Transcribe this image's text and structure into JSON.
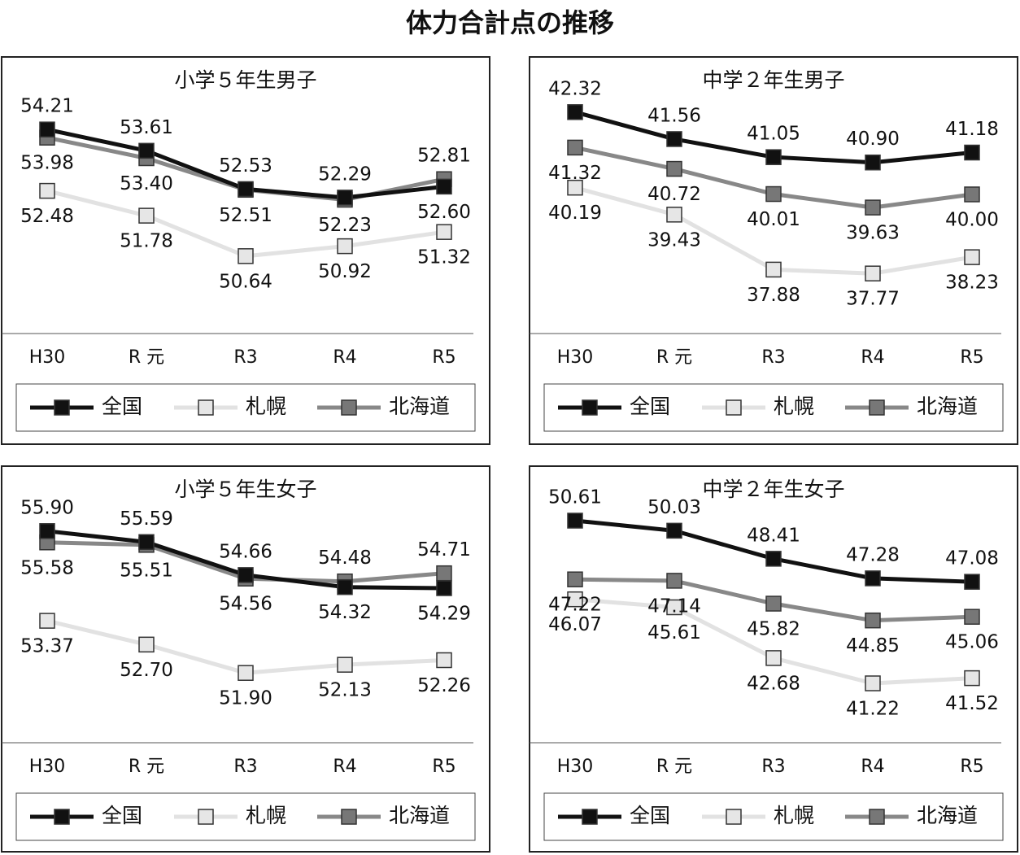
{
  "title": "体力合計点の推移",
  "chart_data": [
    {
      "type": "line",
      "title": "小学５年生男子",
      "categories": [
        "H30",
        "R 元",
        "R3",
        "R4",
        "R5"
      ],
      "series": [
        {
          "name": "全国",
          "color": "#111111",
          "marker_color": "#111111",
          "values": [
            54.21,
            53.61,
            52.53,
            52.29,
            52.6
          ],
          "value_labels": [
            "54.21",
            "53.61",
            "52.53",
            "52.29",
            "52.60"
          ]
        },
        {
          "name": "札幌",
          "color": "#e2e2e2",
          "marker_color": "#e6e6e6",
          "values": [
            52.48,
            51.78,
            50.64,
            50.92,
            51.32
          ],
          "value_labels": [
            "52.48",
            "51.78",
            "50.64",
            "50.92",
            "51.32"
          ]
        },
        {
          "name": "北海道",
          "color": "#888888",
          "marker_color": "#777777",
          "values": [
            53.98,
            53.4,
            52.51,
            52.23,
            52.81
          ],
          "value_labels": [
            "53.98",
            "53.40",
            "52.51",
            "52.23",
            "52.81"
          ]
        }
      ]
    },
    {
      "type": "line",
      "title": "中学２年生男子",
      "categories": [
        "H30",
        "R 元",
        "R3",
        "R4",
        "R5"
      ],
      "series": [
        {
          "name": "全国",
          "color": "#111111",
          "marker_color": "#111111",
          "values": [
            42.32,
            41.56,
            41.05,
            40.9,
            41.18
          ],
          "value_labels": [
            "42.32",
            "41.56",
            "41.05",
            "40.90",
            "41.18"
          ]
        },
        {
          "name": "札幌",
          "color": "#e2e2e2",
          "marker_color": "#e6e6e6",
          "values": [
            40.19,
            39.43,
            37.88,
            37.77,
            38.23
          ],
          "value_labels": [
            "40.19",
            "39.43",
            "37.88",
            "37.77",
            "38.23"
          ]
        },
        {
          "name": "北海道",
          "color": "#888888",
          "marker_color": "#777777",
          "values": [
            41.32,
            40.72,
            40.01,
            39.63,
            40.0
          ],
          "value_labels": [
            "41.32",
            "40.72",
            "40.01",
            "39.63",
            "40.00"
          ]
        }
      ]
    },
    {
      "type": "line",
      "title": "小学５年生女子",
      "categories": [
        "H30",
        "R 元",
        "R3",
        "R4",
        "R5"
      ],
      "series": [
        {
          "name": "全国",
          "color": "#111111",
          "marker_color": "#111111",
          "values": [
            55.9,
            55.59,
            54.66,
            54.32,
            54.29
          ],
          "value_labels": [
            "55.90",
            "55.59",
            "54.66",
            "54.32",
            "54.29"
          ]
        },
        {
          "name": "札幌",
          "color": "#e2e2e2",
          "marker_color": "#e6e6e6",
          "values": [
            53.37,
            52.7,
            51.9,
            52.13,
            52.26
          ],
          "value_labels": [
            "53.37",
            "52.70",
            "51.90",
            "52.13",
            "52.26"
          ]
        },
        {
          "name": "北海道",
          "color": "#888888",
          "marker_color": "#777777",
          "values": [
            55.58,
            55.51,
            54.56,
            54.48,
            54.71
          ],
          "value_labels": [
            "55.58",
            "55.51",
            "54.56",
            "54.48",
            "54.71"
          ]
        }
      ]
    },
    {
      "type": "line",
      "title": "中学２年生女子",
      "categories": [
        "H30",
        "R 元",
        "R3",
        "R4",
        "R5"
      ],
      "series": [
        {
          "name": "全国",
          "color": "#111111",
          "marker_color": "#111111",
          "values": [
            50.61,
            50.03,
            48.41,
            47.28,
            47.08
          ],
          "value_labels": [
            "50.61",
            "50.03",
            "48.41",
            "47.28",
            "47.08"
          ]
        },
        {
          "name": "札幌",
          "color": "#e2e2e2",
          "marker_color": "#e6e6e6",
          "values": [
            46.07,
            45.61,
            42.68,
            41.22,
            41.52
          ],
          "value_labels": [
            "46.07",
            "45.61",
            "42.68",
            "41.22",
            "41.52"
          ]
        },
        {
          "name": "北海道",
          "color": "#888888",
          "marker_color": "#777777",
          "values": [
            47.22,
            47.14,
            45.82,
            44.85,
            45.06
          ],
          "value_labels": [
            "47.22",
            "47.14",
            "45.82",
            "44.85",
            "45.06"
          ]
        }
      ]
    }
  ]
}
